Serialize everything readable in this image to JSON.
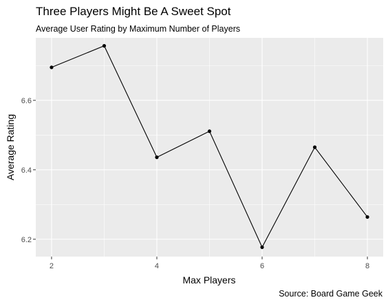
{
  "chart_data": {
    "type": "line",
    "title": "Three Players Might Be A Sweet Spot",
    "subtitle": "Average User Rating by Maximum Number of Players",
    "xlabel": "Max Players",
    "ylabel": "Average Rating",
    "caption": "Source: Board Game Geek",
    "x": [
      2,
      3,
      4,
      5,
      6,
      7,
      8
    ],
    "values": [
      6.695,
      6.757,
      6.436,
      6.511,
      6.177,
      6.465,
      6.264
    ],
    "xlim": [
      1.7,
      8.3
    ],
    "ylim": [
      6.15,
      6.78
    ],
    "x_ticks": [
      2,
      4,
      6,
      8
    ],
    "x_tick_labels": [
      "2",
      "4",
      "6",
      "8"
    ],
    "y_ticks": [
      6.2,
      6.4,
      6.6
    ],
    "y_tick_labels": [
      "6.2",
      "6.4",
      "6.6"
    ],
    "grid": true,
    "legend": "none",
    "colors": {
      "panel": "#ebebeb",
      "grid": "#ffffff",
      "line": "#000000",
      "point": "#000000",
      "tick_text": "#4d4d4d",
      "tick_mark": "#333333"
    }
  }
}
